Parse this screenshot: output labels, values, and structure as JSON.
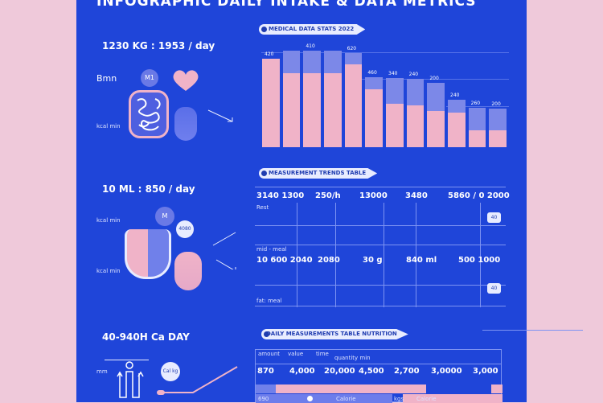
{
  "title": "INFOGRAPHIC DAILY INTAKE & DATA METRICS",
  "colors": {
    "background": "#efc9da",
    "panel": "#1f45d9",
    "pink": "#f0b3c8",
    "lavender": "#7c88e8"
  },
  "section1": {
    "stat": "1230 KG : 1953 / day",
    "label_top": "Bmn",
    "label_bottom": "kcal min",
    "badge": "M1",
    "icons": [
      "brain-organ-icon",
      "heart-icon",
      "drop-icon",
      "arrow-icon"
    ],
    "chart_pill": "MEDICAL DATA STATS 2022",
    "bars": [
      {
        "total": 110,
        "pink": 110,
        "label": "420"
      },
      {
        "total": 120,
        "pink": 92,
        "label": ""
      },
      {
        "total": 120,
        "pink": 92,
        "label": "410"
      },
      {
        "total": 120,
        "pink": 92,
        "label": ""
      },
      {
        "total": 117,
        "pink": 103,
        "label": "620"
      },
      {
        "total": 87,
        "pink": 72,
        "label": "460"
      },
      {
        "total": 86,
        "pink": 54,
        "label": "340"
      },
      {
        "total": 85,
        "pink": 52,
        "label": "240"
      },
      {
        "total": 80,
        "pink": 45,
        "label": "200"
      },
      {
        "total": 59,
        "pink": 43,
        "label": "240"
      },
      {
        "total": 49,
        "pink": 21,
        "label": "260"
      },
      {
        "total": 48,
        "pink": 21,
        "label": "200"
      }
    ]
  },
  "section2": {
    "stat": "10 ML : 850 / day",
    "label_top": "kcal min",
    "label_bottom": "kcal min",
    "badge": "M",
    "badge2": "4080",
    "icons": [
      "stomach-icon",
      "kidney-icon",
      "arrow-icon"
    ],
    "table_pill": "MEASUREMENT TRENDS TABLE",
    "row1": [
      "3140 1300",
      "250/h",
      "13000",
      "3480",
      "5860 / 0 2000"
    ],
    "row2": [
      "10 600 2040",
      "2080",
      "30 g",
      "840 ml",
      "500 1000"
    ],
    "side_labels": [
      "Rest",
      "mid - meal",
      "fat: meal"
    ],
    "badges": [
      "40",
      "40"
    ]
  },
  "section3": {
    "stat": "40-940H Ca DAY",
    "label": "mm",
    "badge": "Cal kg",
    "icons": [
      "intestine-icon",
      "line-trend-icon"
    ],
    "table_pill": "DAILY MEASUREMENTS TABLE NUTRITION",
    "headers": [
      "amount",
      "value",
      "time",
      "quantity min"
    ],
    "values": [
      "870",
      "4,000",
      "20,000",
      "4,500",
      "2,700",
      "3,0000",
      "3,000"
    ],
    "bottom": [
      "690",
      "Calorie",
      "kgs",
      "Calorie"
    ]
  }
}
